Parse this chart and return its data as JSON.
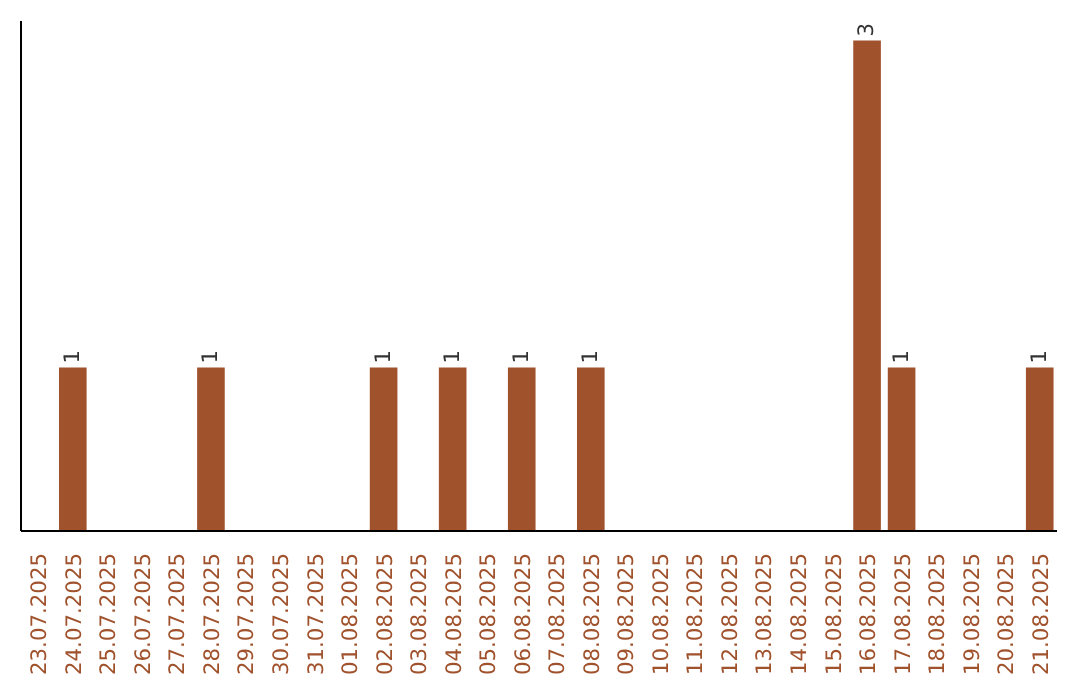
{
  "chart_data": {
    "type": "bar",
    "categories": [
      "23.07.2025",
      "24.07.2025",
      "25.07.2025",
      "26.07.2025",
      "27.07.2025",
      "28.07.2025",
      "29.07.2025",
      "30.07.2025",
      "31.07.2025",
      "01.08.2025",
      "02.08.2025",
      "03.08.2025",
      "04.08.2025",
      "05.08.2025",
      "06.08.2025",
      "07.08.2025",
      "08.08.2025",
      "09.08.2025",
      "10.08.2025",
      "11.08.2025",
      "12.08.2025",
      "13.08.2025",
      "14.08.2025",
      "15.08.2025",
      "16.08.2025",
      "17.08.2025",
      "18.08.2025",
      "19.08.2025",
      "20.08.2025",
      "21.08.2025"
    ],
    "values": [
      0,
      1,
      0,
      0,
      0,
      1,
      0,
      0,
      0,
      0,
      1,
      0,
      1,
      0,
      1,
      0,
      1,
      0,
      0,
      0,
      0,
      0,
      0,
      0,
      3,
      1,
      0,
      0,
      0,
      1
    ],
    "value_labels": [
      null,
      "1",
      null,
      null,
      null,
      "1",
      null,
      null,
      null,
      null,
      "1",
      null,
      "1",
      null,
      "1",
      null,
      "1",
      null,
      null,
      null,
      null,
      null,
      null,
      null,
      "3",
      "1",
      null,
      null,
      null,
      "1"
    ],
    "color": "#a0522d",
    "grid": false,
    "tick_labels": "x"
  }
}
